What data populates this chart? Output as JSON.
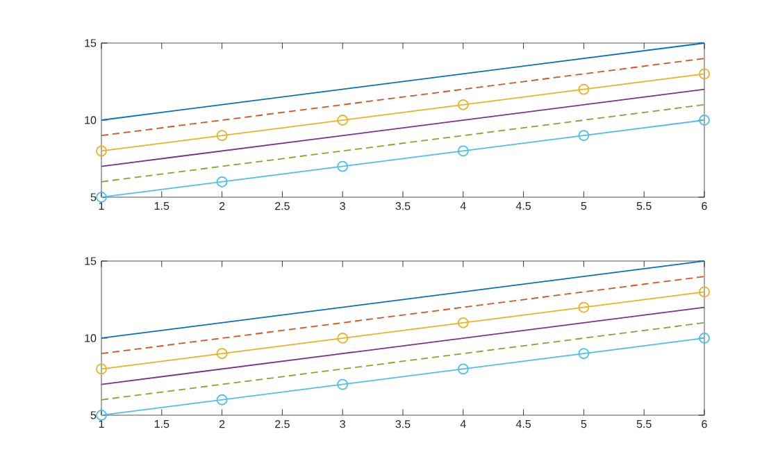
{
  "chart_data": [
    {
      "type": "line",
      "x": [
        1,
        2,
        3,
        4,
        5,
        6
      ],
      "xlim": [
        1,
        6
      ],
      "ylim": [
        5,
        15
      ],
      "xticks": [
        1,
        1.5,
        2,
        2.5,
        3,
        3.5,
        4,
        4.5,
        5,
        5.5,
        6
      ],
      "yticks": [
        5,
        10,
        15
      ],
      "grid": false,
      "series": [
        {
          "color": "#0072bd",
          "values": [
            10,
            11,
            12,
            13,
            14,
            15
          ],
          "line_style": "solid",
          "marker": "none"
        },
        {
          "color": "#d95319",
          "values": [
            9,
            10,
            11,
            12,
            13,
            14
          ],
          "line_style": "dashed",
          "marker": "none"
        },
        {
          "color": "#edb120",
          "values": [
            8,
            9,
            10,
            11,
            12,
            13
          ],
          "line_style": "solid",
          "marker": "circle"
        },
        {
          "color": "#7e2f8e",
          "values": [
            7,
            8,
            9,
            10,
            11,
            12
          ],
          "line_style": "solid",
          "marker": "none"
        },
        {
          "color": "#77ac30",
          "values": [
            6,
            7,
            8,
            9,
            10,
            11
          ],
          "line_style": "dashed",
          "marker": "none"
        },
        {
          "color": "#4dbeee",
          "values": [
            5,
            6,
            7,
            8,
            9,
            10
          ],
          "line_style": "solid",
          "marker": "circle"
        }
      ]
    },
    {
      "type": "line",
      "x": [
        1,
        2,
        3,
        4,
        5,
        6
      ],
      "xlim": [
        1,
        6
      ],
      "ylim": [
        5,
        15
      ],
      "xticks": [
        1,
        1.5,
        2,
        2.5,
        3,
        3.5,
        4,
        4.5,
        5,
        5.5,
        6
      ],
      "yticks": [
        5,
        10,
        15
      ],
      "grid": false,
      "series": [
        {
          "color": "#0072bd",
          "values": [
            10,
            11,
            12,
            13,
            14,
            15
          ],
          "line_style": "solid",
          "marker": "none"
        },
        {
          "color": "#d95319",
          "values": [
            9,
            10,
            11,
            12,
            13,
            14
          ],
          "line_style": "dashed",
          "marker": "none"
        },
        {
          "color": "#edb120",
          "values": [
            8,
            9,
            10,
            11,
            12,
            13
          ],
          "line_style": "solid",
          "marker": "circle"
        },
        {
          "color": "#7e2f8e",
          "values": [
            7,
            8,
            9,
            10,
            11,
            12
          ],
          "line_style": "solid",
          "marker": "none"
        },
        {
          "color": "#77ac30",
          "values": [
            6,
            7,
            8,
            9,
            10,
            11
          ],
          "line_style": "dashed",
          "marker": "none"
        },
        {
          "color": "#4dbeee",
          "values": [
            5,
            6,
            7,
            8,
            9,
            10
          ],
          "line_style": "solid",
          "marker": "circle"
        }
      ]
    }
  ]
}
